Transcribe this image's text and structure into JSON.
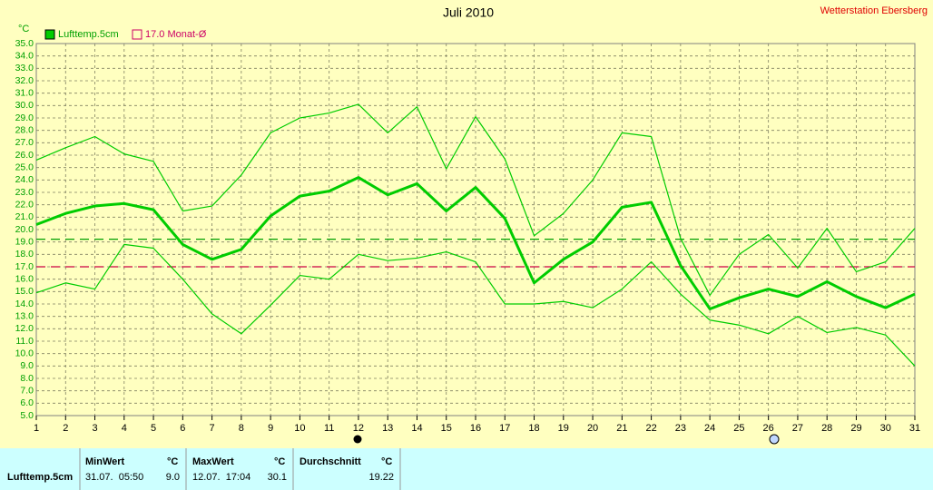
{
  "chart_data": {
    "type": "line",
    "title": "Juli 2010",
    "station": "Wetterstation Ebersberg",
    "y_unit": "°C",
    "x": [
      1,
      2,
      3,
      4,
      5,
      6,
      7,
      8,
      9,
      10,
      11,
      12,
      13,
      14,
      15,
      16,
      17,
      18,
      19,
      20,
      21,
      22,
      23,
      24,
      25,
      26,
      27,
      28,
      29,
      30,
      31
    ],
    "xlim": [
      1,
      31
    ],
    "xticks": [
      1,
      2,
      3,
      4,
      5,
      6,
      7,
      8,
      9,
      10,
      11,
      12,
      13,
      14,
      15,
      16,
      17,
      18,
      19,
      20,
      21,
      22,
      23,
      24,
      25,
      26,
      27,
      28,
      29,
      30,
      31
    ],
    "ylim": [
      5,
      35
    ],
    "yticks": [
      {
        "value": 5,
        "label": "5.0"
      },
      {
        "value": 6,
        "label": "6.0"
      },
      {
        "value": 7,
        "label": "7.0"
      },
      {
        "value": 8,
        "label": "8.0"
      },
      {
        "value": 9,
        "label": "9.0"
      },
      {
        "value": 10,
        "label": "10.0"
      },
      {
        "value": 11,
        "label": "11.0"
      },
      {
        "value": 12,
        "label": "12.0"
      },
      {
        "value": 13,
        "label": "13.0"
      },
      {
        "value": 14,
        "label": "14.0"
      },
      {
        "value": 15,
        "label": "15.0"
      },
      {
        "value": 16,
        "label": "16.0"
      },
      {
        "value": 17,
        "label": "17.0"
      },
      {
        "value": 18,
        "label": "18.0"
      },
      {
        "value": 19,
        "label": "19.0"
      },
      {
        "value": 20,
        "label": "20.0"
      },
      {
        "value": 21,
        "label": "21.0"
      },
      {
        "value": 22,
        "label": "22.0"
      },
      {
        "value": 23,
        "label": "23.0"
      },
      {
        "value": 24,
        "label": "24.0"
      },
      {
        "value": 25,
        "label": "25.0"
      },
      {
        "value": 26,
        "label": "26.0"
      },
      {
        "value": 27,
        "label": "27.0"
      },
      {
        "value": 28,
        "label": "28.0"
      },
      {
        "value": 29,
        "label": "29.0"
      },
      {
        "value": 30,
        "label": "30.0"
      },
      {
        "value": 31,
        "label": "31.0"
      },
      {
        "value": 32,
        "label": "32.0"
      },
      {
        "value": 33,
        "label": "33.0"
      },
      {
        "value": 34,
        "label": "34.0"
      },
      {
        "value": 35,
        "label": "35.0"
      }
    ],
    "grid": true,
    "series": [
      {
        "name": "Lufttemp.5cm",
        "color": "#00cc00",
        "values": [
          20.4,
          21.3,
          21.9,
          22.1,
          21.6,
          18.8,
          17.6,
          18.4,
          21.1,
          22.7,
          23.1,
          24.2,
          22.8,
          23.7,
          21.5,
          23.4,
          20.9,
          15.7,
          17.6,
          19.0,
          21.8,
          22.2,
          17.1,
          13.6,
          14.5,
          15.2,
          14.6,
          15.8,
          14.6,
          13.7,
          14.8
        ]
      },
      {
        "color": "#00cc00",
        "values": [
          25.6,
          26.6,
          27.5,
          26.1,
          25.5,
          21.5,
          21.9,
          24.4,
          27.8,
          29.0,
          29.4,
          30.1,
          27.8,
          29.9,
          24.9,
          29.1,
          25.7,
          19.5,
          21.3,
          24.0,
          27.8,
          27.5,
          19.3,
          14.7,
          18.0,
          19.6,
          16.9,
          20.1,
          16.6,
          17.4,
          20.1
        ]
      },
      {
        "color": "#00cc00",
        "values": [
          14.9,
          15.7,
          15.2,
          18.8,
          18.5,
          16.0,
          13.2,
          11.6,
          13.9,
          16.3,
          16.0,
          18.0,
          17.5,
          17.7,
          18.2,
          17.4,
          14.0,
          14.0,
          14.2,
          13.7,
          15.2,
          17.4,
          14.8,
          12.7,
          12.3,
          11.6,
          13.0,
          11.7,
          12.1,
          11.5,
          9.0
        ]
      }
    ],
    "reference_lines": [
      {
        "value": 19.22,
        "color": "#00a000"
      },
      {
        "value": 17.0,
        "label": "17.0 Monat-Ø",
        "color": "#cc0044"
      }
    ],
    "table": {
      "headers": [
        "MinWert",
        "°C",
        "MaxWert",
        "°C",
        "Durchschnitt",
        "°C"
      ],
      "row": {
        "name": "Lufttemp.5cm",
        "min_time": "31.07.  05:50",
        "min": "9.0",
        "max_time": "12.07.  17:04",
        "max": "30.1",
        "avg": "19.22"
      }
    }
  }
}
